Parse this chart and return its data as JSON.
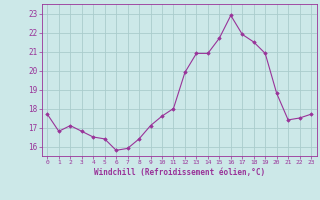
{
  "x": [
    0,
    1,
    2,
    3,
    4,
    5,
    6,
    7,
    8,
    9,
    10,
    11,
    12,
    13,
    14,
    15,
    16,
    17,
    18,
    19,
    20,
    21,
    22,
    23
  ],
  "y": [
    17.7,
    16.8,
    17.1,
    16.8,
    16.5,
    16.4,
    15.8,
    15.9,
    16.4,
    17.1,
    17.6,
    18.0,
    19.9,
    20.9,
    20.9,
    21.7,
    22.9,
    21.9,
    21.5,
    20.9,
    18.8,
    17.4,
    17.5,
    17.7
  ],
  "line_color": "#993399",
  "marker": "D",
  "marker_size": 1.8,
  "bg_color": "#cce8e8",
  "grid_color": "#aacccc",
  "xlabel": "Windchill (Refroidissement éolien,°C)",
  "xlabel_color": "#993399",
  "tick_color": "#993399",
  "ylim": [
    15.5,
    23.5
  ],
  "xlim": [
    -0.5,
    23.5
  ],
  "yticks": [
    16,
    17,
    18,
    19,
    20,
    21,
    22,
    23
  ],
  "xticks": [
    0,
    1,
    2,
    3,
    4,
    5,
    6,
    7,
    8,
    9,
    10,
    11,
    12,
    13,
    14,
    15,
    16,
    17,
    18,
    19,
    20,
    21,
    22,
    23
  ]
}
